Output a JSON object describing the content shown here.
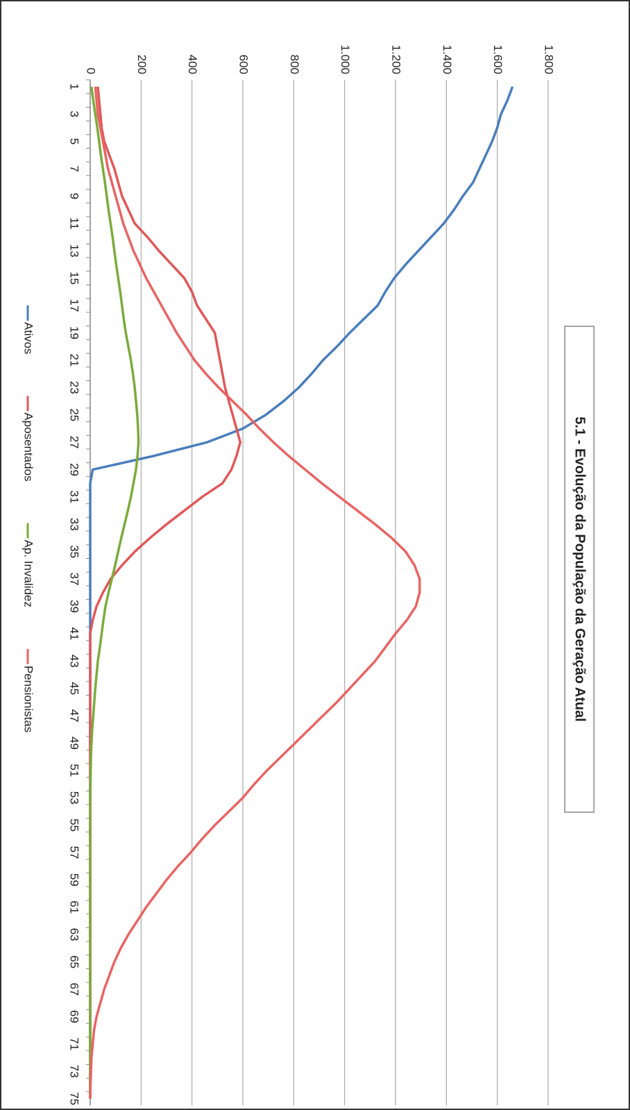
{
  "chart_data": {
    "type": "line",
    "title": "5.1 - Evolução da População da Geração Atual",
    "categories": [
      1,
      null,
      3,
      null,
      5,
      null,
      7,
      null,
      9,
      null,
      11,
      null,
      13,
      null,
      15,
      null,
      17,
      null,
      19,
      null,
      21,
      null,
      23,
      null,
      25,
      null,
      27,
      null,
      29,
      null,
      31,
      null,
      33,
      null,
      35,
      null,
      37,
      null,
      39,
      null,
      41,
      null,
      43,
      null,
      45,
      null,
      47,
      null,
      49,
      null,
      51,
      null,
      53,
      null,
      55,
      null,
      57,
      null,
      59,
      null,
      61,
      null,
      63,
      null,
      65,
      null,
      67,
      null,
      69,
      null,
      71,
      null,
      73,
      null,
      75
    ],
    "ylim": [
      0,
      1800
    ],
    "yticks": [
      0,
      200,
      400,
      600,
      800,
      {
        "value": 1000,
        "label": "1.000"
      },
      {
        "value": 1200,
        "label": "1.200"
      },
      {
        "value": 1400,
        "label": "1.400"
      },
      {
        "value": 1600,
        "label": "1.600"
      },
      {
        "value": 1800,
        "label": "1.800"
      }
    ],
    "grid": true,
    "legend": "bottom",
    "series": [
      {
        "name": "Ativos",
        "color": "#4a7ebb",
        "values": [
          1660,
          1640,
          1615,
          1600,
          1580,
          1555,
          1530,
          1505,
          1465,
          1430,
          1390,
          1340,
          1290,
          1240,
          1195,
          1160,
          1130,
          1075,
          1020,
          970,
          915,
          870,
          820,
          760,
          690,
          600,
          460,
          250,
          10,
          0,
          0,
          0,
          0,
          0,
          0,
          0,
          0,
          0,
          0,
          0,
          0,
          0,
          0,
          0,
          0,
          0,
          0,
          0,
          0,
          0,
          0,
          0,
          0,
          0,
          0,
          0,
          0,
          0,
          0,
          0,
          0,
          0,
          0,
          0,
          0,
          0,
          0,
          0,
          0,
          0,
          0,
          0,
          0,
          0,
          0
        ]
      },
      {
        "name": "Aposentados",
        "color": "#e0585a",
        "values": [
          30,
          35,
          40,
          45,
          55,
          75,
          95,
          110,
          125,
          150,
          175,
          225,
          270,
          320,
          370,
          400,
          420,
          455,
          490,
          500,
          510,
          520,
          530,
          545,
          560,
          575,
          590,
          575,
          555,
          520,
          440,
          370,
          300,
          235,
          175,
          125,
          80,
          50,
          25,
          10,
          0,
          0,
          0,
          0,
          0,
          0,
          0,
          0,
          0,
          0,
          0,
          0,
          0,
          0,
          0,
          0,
          0,
          0,
          0,
          0,
          0,
          0,
          0,
          0,
          0,
          0,
          0,
          0,
          0,
          0,
          0,
          0,
          0,
          0,
          0
        ]
      },
      {
        "name": "Ap. Invalidez",
        "color": "#7aab3b",
        "values": [
          5,
          12,
          20,
          28,
          35,
          42,
          50,
          58,
          65,
          72,
          80,
          88,
          95,
          102,
          110,
          118,
          125,
          132,
          140,
          150,
          160,
          168,
          175,
          180,
          185,
          188,
          190,
          186,
          180,
          170,
          160,
          148,
          135,
          122,
          110,
          98,
          85,
          72,
          60,
          52,
          45,
          38,
          30,
          25,
          20,
          16,
          12,
          8,
          5,
          3,
          2,
          1,
          0,
          0,
          0,
          0,
          0,
          0,
          0,
          0,
          0,
          0,
          0,
          0,
          0,
          0,
          0,
          0,
          0,
          0,
          0,
          0,
          0,
          0,
          0
        ]
      },
      {
        "name": "Pensionistas",
        "color": "#e86464",
        "values": [
          20,
          25,
          30,
          40,
          50,
          60,
          70,
          85,
          100,
          115,
          130,
          150,
          170,
          195,
          220,
          250,
          280,
          310,
          340,
          375,
          410,
          455,
          505,
          560,
          615,
          665,
          720,
          780,
          845,
          910,
          980,
          1050,
          1120,
          1185,
          1240,
          1275,
          1295,
          1295,
          1280,
          1245,
          1200,
          1160,
          1120,
          1070,
          1020,
          970,
          915,
          860,
          805,
          750,
          695,
          645,
          600,
          545,
          490,
          440,
          395,
          345,
          300,
          260,
          220,
          185,
          150,
          120,
          95,
          75,
          55,
          40,
          25,
          15,
          10,
          5,
          3,
          1,
          0
        ]
      }
    ]
  }
}
